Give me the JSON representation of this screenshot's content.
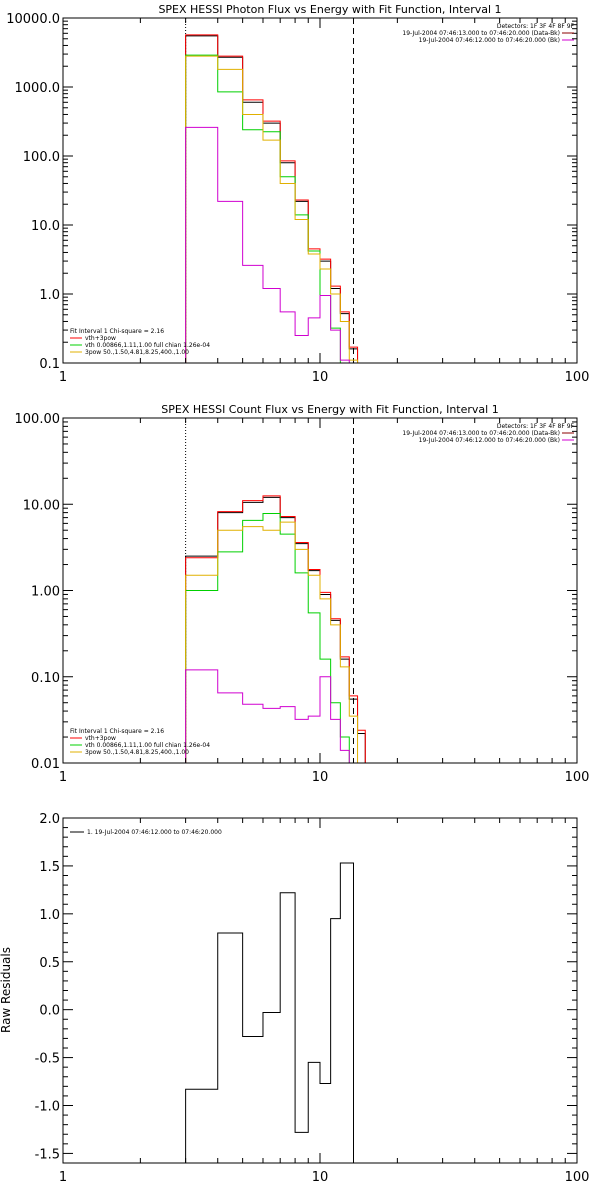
{
  "chart_data": [
    {
      "type": "line",
      "title": "SPEX HESSI Photon Flux vs Energy with Fit Function, Interval 1",
      "xscale": "log",
      "yscale": "log",
      "xlim": [
        1,
        100
      ],
      "ylim": [
        0.1,
        10000
      ],
      "x_tick_labels": [
        "1",
        "10",
        "100"
      ],
      "y_tick_labels": [
        "0.1",
        "1.0",
        "10.0",
        "100.0",
        "1000.0",
        "10000.0"
      ],
      "vlines": {
        "dotted": 3.0,
        "dashed": 13.5
      },
      "legend": {
        "header": "Detectors: 1F 3F 4F 8F 9F",
        "entries": [
          {
            "text": "19-Jul-2004 07:46:13.000 to 07:46:20.000 (Data-Bk)",
            "color": "#8b0000"
          },
          {
            "text": "19-Jul-2004 07:46:12.000 to 07:46:20.000 (Bk)",
            "color": "#d000d0"
          }
        ],
        "fit_text": "Fit Interval 1   Chi-square = 2.16",
        "fit_entries": [
          {
            "text": "vth+3pow",
            "color": "#ff0000"
          },
          {
            "text": "vth 0.00866,1.11,1.00  full chian 1.26e-04",
            "color": "#00d000"
          },
          {
            "text": "3pow 50.,1.50,4.81,8.25,400.,1.00",
            "color": "#e0b000"
          }
        ]
      },
      "series": [
        {
          "color": "#000000",
          "edges": [
            3,
            4,
            5,
            6,
            7,
            8,
            9,
            10,
            11,
            12,
            13,
            14,
            15
          ],
          "values": [
            5500,
            2700,
            600,
            300,
            80,
            22,
            4.2,
            3.0,
            1.2,
            0.52,
            0.16,
            0.1
          ]
        },
        {
          "color": "#ff0000",
          "edges": [
            3,
            4,
            5,
            6,
            7,
            8,
            9,
            10,
            11,
            12,
            13,
            14,
            15
          ],
          "values": [
            5700,
            2800,
            650,
            320,
            85,
            23,
            4.5,
            3.2,
            1.3,
            0.55,
            0.17,
            0.1
          ]
        },
        {
          "color": "#00d000",
          "edges": [
            3,
            4,
            5,
            6,
            7,
            8,
            9,
            10,
            11,
            12,
            13,
            14
          ],
          "values": [
            2900,
            850,
            240,
            225,
            50,
            14,
            4.2,
            0.95,
            0.32,
            0.1,
            0.1
          ]
        },
        {
          "color": "#e0b000",
          "edges": [
            3,
            4,
            5,
            6,
            7,
            8,
            9,
            10,
            11,
            12,
            13,
            14,
            15
          ],
          "values": [
            2800,
            1800,
            400,
            170,
            40,
            12,
            3.8,
            2.3,
            1.0,
            0.4,
            0.11,
            0.1
          ]
        },
        {
          "color": "#d000d0",
          "edges": [
            3,
            4,
            5,
            6,
            7,
            8,
            9,
            10,
            11,
            12,
            13
          ],
          "values": [
            260,
            22,
            2.6,
            1.2,
            0.55,
            0.25,
            0.45,
            0.95,
            0.3,
            0.11
          ]
        }
      ]
    },
    {
      "type": "line",
      "title": "SPEX HESSI Count Flux vs Energy with Fit Function, Interval 1",
      "xscale": "log",
      "yscale": "log",
      "xlim": [
        1,
        100
      ],
      "ylim": [
        0.01,
        100
      ],
      "x_tick_labels": [
        "1",
        "10",
        "100"
      ],
      "y_tick_labels": [
        "0.01",
        "0.10",
        "1.00",
        "10.00",
        "100.00"
      ],
      "vlines": {
        "dotted": 3.0,
        "dashed": 13.5
      },
      "legend": {
        "header": "Detectors: 1F 3F 4F 8F 9F",
        "entries": [
          {
            "text": "19-Jul-2004 07:46:13.000 to 07:46:20.000 (Data-Bk)",
            "color": "#8b0000"
          },
          {
            "text": "19-Jul-2004 07:46:12.000 to 07:46:20.000 (Bk)",
            "color": "#d000d0"
          }
        ],
        "fit_text": "Fit Interval 1   Chi-square = 2.16",
        "fit_entries": [
          {
            "text": "vth+3pow",
            "color": "#ff0000"
          },
          {
            "text": "vth 0.00866,1.11,1.00  full chian 1.26e-04",
            "color": "#00d000"
          },
          {
            "text": "3pow 50.,1.50,4.81,8.25,400.,1.00",
            "color": "#e0b000"
          }
        ]
      },
      "series": [
        {
          "color": "#000000",
          "edges": [
            3,
            4,
            5,
            6,
            7,
            8,
            9,
            10,
            11,
            12,
            13,
            14,
            15,
            16
          ],
          "values": [
            2.5,
            8.0,
            10.5,
            12.0,
            7.0,
            3.5,
            1.7,
            0.9,
            0.45,
            0.16,
            0.055,
            0.022,
            0.01
          ]
        },
        {
          "color": "#ff0000",
          "edges": [
            3,
            4,
            5,
            6,
            7,
            8,
            9,
            10,
            11,
            12,
            13,
            14,
            15,
            16
          ],
          "values": [
            2.4,
            8.2,
            11.0,
            12.5,
            7.2,
            3.6,
            1.75,
            0.95,
            0.47,
            0.17,
            0.06,
            0.024,
            0.01
          ]
        },
        {
          "color": "#00d000",
          "edges": [
            3,
            4,
            5,
            6,
            7,
            8,
            9,
            10,
            11,
            12,
            13,
            14
          ],
          "values": [
            1.0,
            2.8,
            6.5,
            7.8,
            4.5,
            1.6,
            0.55,
            0.16,
            0.05,
            0.02,
            0.01
          ]
        },
        {
          "color": "#e0b000",
          "edges": [
            3,
            4,
            5,
            6,
            7,
            8,
            9,
            10,
            11,
            12,
            13,
            14,
            15
          ],
          "values": [
            1.5,
            5.0,
            5.5,
            5.0,
            6.2,
            3.0,
            1.5,
            0.8,
            0.4,
            0.13,
            0.035,
            0.01
          ]
        },
        {
          "color": "#d000d0",
          "edges": [
            3,
            4,
            5,
            6,
            7,
            8,
            9,
            10,
            11,
            12,
            13
          ],
          "values": [
            0.12,
            0.065,
            0.048,
            0.043,
            0.045,
            0.032,
            0.035,
            0.1,
            0.032,
            0.014
          ]
        }
      ]
    },
    {
      "type": "line",
      "title": "",
      "ylabel": "Raw Residuals",
      "xscale": "log",
      "xlim": [
        1,
        100
      ],
      "ylim": [
        -1.6,
        2.0
      ],
      "x_tick_labels": [
        "1",
        "10",
        "100"
      ],
      "y_tick_labels": [
        "-1.5",
        "-1.0",
        "-0.5",
        "0.0",
        "0.5",
        "1.0",
        "1.5",
        "2.0"
      ],
      "legend": {
        "entries": [
          {
            "text": "1. 19-Jul-2004 07:46:12.000 to 07:46:20.000",
            "color": "#000000"
          }
        ]
      },
      "series": [
        {
          "color": "#000000",
          "edges": [
            3,
            4,
            5,
            6,
            7,
            8,
            9,
            10,
            11,
            12,
            13.5
          ],
          "values": [
            -0.83,
            0.8,
            -0.28,
            -0.03,
            1.22,
            -1.28,
            -0.55,
            -0.77,
            0.95,
            1.53
          ]
        }
      ]
    }
  ]
}
